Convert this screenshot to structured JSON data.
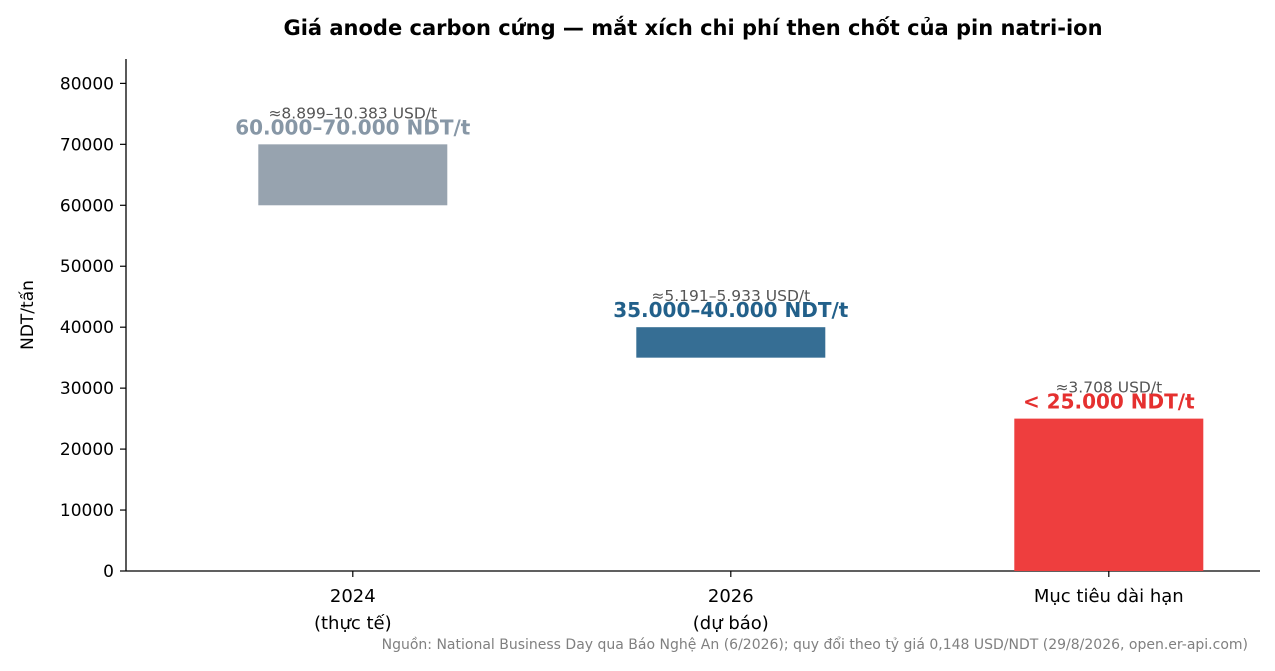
{
  "chart_data": {
    "type": "bar",
    "title": "Giá anode carbon cứng — mắt xích chi phí then chốt của pin natri-ion",
    "ylabel": "NDT/tấn",
    "xlabel": "",
    "ylim": [
      0,
      84000
    ],
    "yticks": [
      0,
      10000,
      20000,
      30000,
      40000,
      50000,
      60000,
      70000,
      80000
    ],
    "grid": false,
    "categories": [
      {
        "line1": "2024",
        "line2": "(thực tế)"
      },
      {
        "line1": "2026",
        "line2": "(dự báo)"
      },
      {
        "line1": "Mục tiêu dài hạn",
        "line2": ""
      }
    ],
    "bars": [
      {
        "low": 60000,
        "high": 70000,
        "color": "#97A3AF",
        "label": "60.000–70.000 NDT/t",
        "label_color": "#8797A6",
        "usd_label": "≈8.899–10.383 USD/t"
      },
      {
        "low": 35000,
        "high": 40000,
        "color": "#366E94",
        "label": "35.000–40.000 NDT/t",
        "label_color": "#22608A",
        "usd_label": "≈5.191–5.933 USD/t"
      },
      {
        "low": 0,
        "high": 25000,
        "color": "#EE3E3E",
        "label": "< 25.000 NDT/t",
        "label_color": "#E5302F",
        "usd_label": "≈3.708 USD/t"
      }
    ],
    "source": "Nguồn: National Business Day qua Báo Nghệ An (6/2026); quy đổi theo tỷ giá 0,148 USD/NDT (29/8/2026, open.er-api.com)"
  }
}
